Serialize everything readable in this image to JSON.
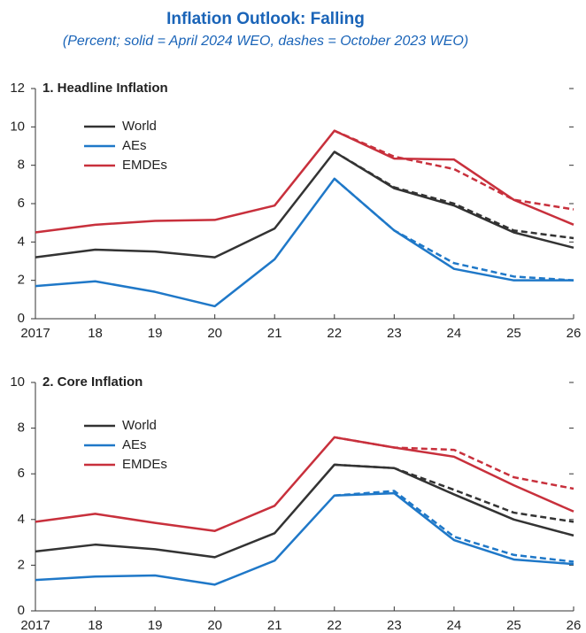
{
  "title": "Inflation Outlook: Falling",
  "subtitle": "(Percent; solid = April 2024 WEO, dashes = October 2023 WEO)",
  "chart_data": [
    {
      "type": "line",
      "title": "1. Headline Inflation",
      "categories": [
        "2017",
        "18",
        "19",
        "20",
        "21",
        "22",
        "23",
        "24",
        "25",
        "26"
      ],
      "ylim": [
        0,
        12
      ],
      "yticks": [
        0,
        2,
        4,
        6,
        8,
        10,
        12
      ],
      "series": [
        {
          "name": "World",
          "color": "#333333",
          "values": [
            3.2,
            3.6,
            3.5,
            3.2,
            4.7,
            8.7,
            6.8,
            5.9,
            4.5,
            3.7
          ]
        },
        {
          "name": "AEs",
          "color": "#1f78c8",
          "values": [
            1.7,
            1.95,
            1.4,
            0.65,
            3.1,
            7.3,
            4.6,
            2.6,
            2.0,
            2.0
          ]
        },
        {
          "name": "EMDEs",
          "color": "#c8303c",
          "values": [
            4.5,
            4.9,
            5.1,
            5.15,
            5.9,
            9.8,
            8.35,
            8.3,
            6.2,
            4.9
          ]
        },
        {
          "color": "#333333",
          "dashed": true,
          "values": [
            null,
            null,
            null,
            null,
            null,
            8.7,
            6.85,
            6.0,
            4.6,
            4.2
          ]
        },
        {
          "color": "#1f78c8",
          "dashed": true,
          "values": [
            null,
            null,
            null,
            null,
            null,
            7.3,
            4.6,
            2.9,
            2.2,
            2.0
          ]
        },
        {
          "color": "#c8303c",
          "dashed": true,
          "values": [
            null,
            null,
            null,
            null,
            null,
            9.8,
            8.45,
            7.8,
            6.2,
            5.7
          ]
        }
      ]
    },
    {
      "type": "line",
      "title": "2. Core Inflation",
      "categories": [
        "2017",
        "18",
        "19",
        "20",
        "21",
        "22",
        "23",
        "24",
        "25",
        "26"
      ],
      "ylim": [
        0,
        10
      ],
      "yticks": [
        0,
        2,
        4,
        6,
        8,
        10
      ],
      "series": [
        {
          "name": "World",
          "color": "#333333",
          "values": [
            2.6,
            2.9,
            2.7,
            2.35,
            3.4,
            6.4,
            6.25,
            5.1,
            4.0,
            3.3
          ]
        },
        {
          "name": "AEs",
          "color": "#1f78c8",
          "values": [
            1.35,
            1.5,
            1.55,
            1.15,
            2.2,
            5.05,
            5.15,
            3.1,
            2.25,
            2.05
          ]
        },
        {
          "name": "EMDEs",
          "color": "#c8303c",
          "values": [
            3.9,
            4.25,
            3.85,
            3.5,
            4.6,
            7.6,
            7.15,
            6.75,
            5.5,
            4.35
          ]
        },
        {
          "color": "#333333",
          "dashed": true,
          "values": [
            null,
            null,
            null,
            null,
            null,
            6.4,
            6.25,
            5.3,
            4.3,
            3.9
          ]
        },
        {
          "color": "#1f78c8",
          "dashed": true,
          "values": [
            null,
            null,
            null,
            null,
            null,
            5.05,
            5.25,
            3.25,
            2.45,
            2.15
          ]
        },
        {
          "color": "#c8303c",
          "dashed": true,
          "values": [
            null,
            null,
            null,
            null,
            null,
            7.6,
            7.15,
            7.05,
            5.85,
            5.35
          ]
        }
      ]
    }
  ]
}
